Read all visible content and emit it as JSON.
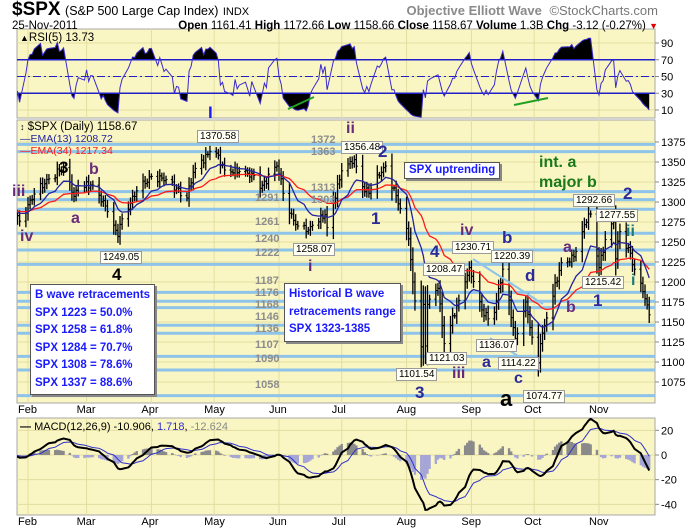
{
  "header": {
    "symbol": "$SPX",
    "name": "(S&P 500 Large Cap Index)",
    "exchange": "INDX",
    "annotator": "Objective Elliott Wave",
    "copyright": "©StockCharts.com",
    "date": "25-Nov-2011",
    "open_label": "Open",
    "open": "1161.41",
    "high_label": "High",
    "high": "1172.66",
    "low_label": "Low",
    "low": "1158.66",
    "close_label": "Close",
    "close": "1158.67",
    "volume_label": "Volume",
    "volume": "1.3B",
    "chg_label": "Chg",
    "chg": "-3.12 (-0.27%)",
    "down_color": "#e00000"
  },
  "legends": {
    "rsi": "RSI(5) 13.73",
    "price": "$SPX (Daily) 1158.67",
    "ema13": "EMA(13) 1208.72",
    "ema34": "EMA(34) 1217.34",
    "macd_main": "MACD(12,26,9) -10.906",
    "macd_signal": "1.718",
    "macd_hist": "-12.624"
  },
  "levels": [
    {
      "value": 1372,
      "label": "1372"
    },
    {
      "value": 1363,
      "label": "1363"
    },
    {
      "value": 1313,
      "label": "1313"
    },
    {
      "value": 1303,
      "label": "1303"
    },
    {
      "value": 1291,
      "label": "1291"
    },
    {
      "value": 1261,
      "label": "1261"
    },
    {
      "value": 1240,
      "label": "1240"
    },
    {
      "value": 1222,
      "label": "1222"
    },
    {
      "value": 1187,
      "label": "1187"
    },
    {
      "value": 1176,
      "label": "1176"
    },
    {
      "value": 1168,
      "label": "1168"
    },
    {
      "value": 1146,
      "label": "1146"
    },
    {
      "value": 1136,
      "label": "1136"
    },
    {
      "value": 1107,
      "label": "1107"
    },
    {
      "value": 1090,
      "label": "1090"
    },
    {
      "value": 1058,
      "label": "1058"
    }
  ],
  "price_labels": [
    "1370.58",
    "1249.05",
    "1258.07",
    "1356.48",
    "1292.66",
    "1277.55",
    "1230.71",
    "1220.39",
    "1208.47",
    "1215.42",
    "1136.07",
    "1121.03",
    "1114.22",
    "1101.54",
    "1074.77"
  ],
  "waves": [
    "I",
    "3",
    "b",
    "iii",
    "a",
    "iv",
    "4",
    "i",
    "ii",
    "2",
    "1",
    "iv",
    "b",
    "4",
    "a",
    "d",
    "i",
    "1",
    "b",
    "a",
    "c",
    "iii",
    "3",
    "a",
    "2",
    "ii"
  ],
  "wave_colors": {
    "blue": "#2a2a9a",
    "purple": "#6a2a7a",
    "black": "#000000",
    "green": "#1a7a1a",
    "teal": "#1a7a7a"
  },
  "bwave_box": [
    "B wave retracements",
    "SPX 1223 = 50.0%",
    "SPX 1258 = 61.8%",
    "SPX 1284 = 70.7%",
    "SPX 1308 = 78.6%",
    "SPX 1337 = 88.6%"
  ],
  "historical_box": [
    "Historical B wave",
    "retracements range",
    "SPX 1323-1385"
  ],
  "trend_box": "SPX uptrending",
  "int_label": [
    "int. a",
    "major b"
  ],
  "chart_data": {
    "type": "ohlc",
    "title": "$SPX (S&P 500 Large Cap Index) Daily",
    "months": [
      "Feb",
      "Mar",
      "Apr",
      "May",
      "Jun",
      "Jul",
      "Aug",
      "Sep",
      "Oct",
      "Nov"
    ],
    "price_axis": {
      "ticks": [
        1375,
        1350,
        1325,
        1300,
        1275,
        1250,
        1225,
        1200,
        1175,
        1150,
        1125,
        1100,
        1075
      ],
      "range": [
        1050,
        1390
      ]
    },
    "rsi_axis": {
      "ticks": [
        90,
        70,
        50,
        30,
        10
      ],
      "overbought": 70,
      "oversold": 30,
      "mid": 50
    },
    "macd_axis": {
      "ticks": [
        20,
        0,
        -20,
        -40
      ]
    },
    "price_keypoints": [
      [
        "2011-01-24",
        1290
      ],
      [
        "2011-01-28",
        1276
      ],
      [
        "2011-02-04",
        1310
      ],
      [
        "2011-02-11",
        1329
      ],
      [
        "2011-02-18",
        1343
      ],
      [
        "2011-02-23",
        1307
      ],
      [
        "2011-02-25",
        1320
      ],
      [
        "2011-03-04",
        1321
      ],
      [
        "2011-03-10",
        1295
      ],
      [
        "2011-03-16",
        1257
      ],
      [
        "2011-03-18",
        1279
      ],
      [
        "2011-03-25",
        1314
      ],
      [
        "2011-04-01",
        1332
      ],
      [
        "2011-04-08",
        1328
      ],
      [
        "2011-04-18",
        1305
      ],
      [
        "2011-04-21",
        1337
      ],
      [
        "2011-04-29",
        1363
      ],
      [
        "2011-05-02",
        1361
      ],
      [
        "2011-05-06",
        1340
      ],
      [
        "2011-05-13",
        1338
      ],
      [
        "2011-05-20",
        1333
      ],
      [
        "2011-05-23",
        1317
      ],
      [
        "2011-05-31",
        1345
      ],
      [
        "2011-06-06",
        1286
      ],
      [
        "2011-06-10",
        1270
      ],
      [
        "2011-06-15",
        1265
      ],
      [
        "2011-06-17",
        1271
      ],
      [
        "2011-06-23",
        1284
      ],
      [
        "2011-06-24",
        1268
      ],
      [
        "2011-07-01",
        1339
      ],
      [
        "2011-07-07",
        1353
      ],
      [
        "2011-07-12",
        1313
      ],
      [
        "2011-07-15",
        1316
      ],
      [
        "2011-07-21",
        1343
      ],
      [
        "2011-07-22",
        1345
      ],
      [
        "2011-07-29",
        1292
      ],
      [
        "2011-08-02",
        1254
      ],
      [
        "2011-08-04",
        1200
      ],
      [
        "2011-08-08",
        1119
      ],
      [
        "2011-08-09",
        1172
      ],
      [
        "2011-08-10",
        1120
      ],
      [
        "2011-08-11",
        1172
      ],
      [
        "2011-08-16",
        1192
      ],
      [
        "2011-08-19",
        1123
      ],
      [
        "2011-08-26",
        1177
      ],
      [
        "2011-08-31",
        1218
      ],
      [
        "2011-09-06",
        1165
      ],
      [
        "2011-09-09",
        1154
      ],
      [
        "2011-09-12",
        1162
      ],
      [
        "2011-09-16",
        1216
      ],
      [
        "2011-09-22",
        1129
      ],
      [
        "2011-09-27",
        1175
      ],
      [
        "2011-09-30",
        1131
      ],
      [
        "2011-10-03",
        1099
      ],
      [
        "2011-10-04",
        1123
      ],
      [
        "2011-10-07",
        1155
      ],
      [
        "2011-10-14",
        1224
      ],
      [
        "2011-10-18",
        1225
      ],
      [
        "2011-10-21",
        1238
      ],
      [
        "2011-10-27",
        1285
      ],
      [
        "2011-10-28",
        1285
      ],
      [
        "2011-11-01",
        1218
      ],
      [
        "2011-11-04",
        1253
      ],
      [
        "2011-11-08",
        1275
      ],
      [
        "2011-11-09",
        1229
      ],
      [
        "2011-11-11",
        1263
      ],
      [
        "2011-11-16",
        1236
      ],
      [
        "2011-11-18",
        1216
      ],
      [
        "2011-11-22",
        1188
      ],
      [
        "2011-11-25",
        1159
      ]
    ],
    "indicators": {
      "rsi5_last": 13.73,
      "ema13_last": 1208.72,
      "ema34_last": 1217.34,
      "macd": -10.906,
      "signal": 1.718,
      "histogram": -12.624
    },
    "colors": {
      "panel": "#f9f6c4",
      "level_line": "#8ec3ea",
      "ema13": "#2323a0",
      "ema34": "#ff1a1a",
      "rsi": "#3a2ad0",
      "macd": "#000000",
      "signal": "#3030c8",
      "hist_pos": "#8a8a8a",
      "hist_neg": "#a6a6d6",
      "divergence": "#22a022"
    }
  }
}
